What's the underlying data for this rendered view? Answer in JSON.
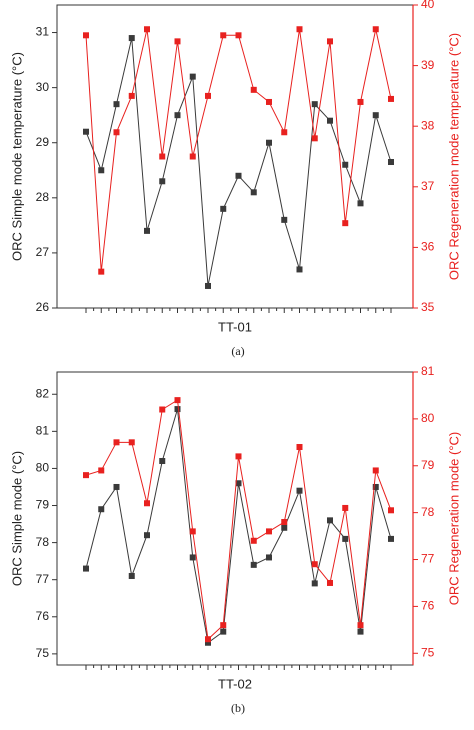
{
  "chart_data": [
    {
      "type": "line",
      "caption": "(a)",
      "xlabel": "TT-01",
      "ylabel": "ORC Simple mode temperature (°C)",
      "y2label": "ORC Regeneration mode temperature (°C)",
      "categories": [
        null,
        null,
        null,
        null,
        null,
        null,
        null,
        null,
        null,
        null,
        null,
        null,
        null,
        null,
        null,
        null,
        null,
        null,
        null,
        null,
        null
      ],
      "ylim": [
        26,
        31.5
      ],
      "yticks": [
        26,
        27,
        28,
        29,
        30,
        31
      ],
      "y2lim": [
        35,
        40
      ],
      "y2ticks": [
        35,
        36,
        37,
        38,
        39,
        40
      ],
      "series": [
        {
          "color": "#3a3a3a",
          "values": [
            29.2,
            28.5,
            29.7,
            30.9,
            27.4,
            28.3,
            29.5,
            30.2,
            26.4,
            27.8,
            28.4,
            28.1,
            29.0,
            27.6,
            26.7,
            29.7,
            29.4,
            28.6,
            27.9,
            29.5,
            28.65
          ]
        },
        {
          "color": "#e8211f",
          "axis": "y2",
          "values": [
            39.5,
            35.6,
            37.9,
            38.5,
            39.6,
            37.5,
            39.4,
            37.5,
            38.5,
            39.5,
            39.5,
            38.6,
            38.4,
            37.9,
            39.6,
            37.8,
            39.4,
            36.4,
            38.4,
            39.6,
            38.45
          ]
        }
      ]
    },
    {
      "type": "line",
      "caption": "(b)",
      "xlabel": "TT-02",
      "ylabel": "ORC Simple mode (°C)",
      "y2label": "ORC Regeneration mode (°C)",
      "categories": [
        null,
        null,
        null,
        null,
        null,
        null,
        null,
        null,
        null,
        null,
        null,
        null,
        null,
        null,
        null,
        null,
        null,
        null,
        null,
        null,
        null
      ],
      "ylim": [
        74.7,
        82.6
      ],
      "yticks": [
        75,
        76,
        77,
        78,
        79,
        80,
        81,
        82
      ],
      "y2lim": [
        74.75,
        81
      ],
      "y2ticks": [
        75,
        76,
        77,
        78,
        79,
        80,
        81
      ],
      "series": [
        {
          "color": "#3a3a3a",
          "values": [
            77.3,
            78.9,
            79.5,
            77.1,
            78.2,
            80.2,
            81.6,
            77.6,
            75.3,
            75.6,
            79.6,
            77.4,
            77.6,
            78.4,
            79.4,
            76.9,
            78.6,
            78.1,
            75.6,
            79.5,
            78.1
          ]
        },
        {
          "color": "#e8211f",
          "axis": "y2",
          "values": [
            78.8,
            78.9,
            79.5,
            79.5,
            78.2,
            80.2,
            80.4,
            77.6,
            75.3,
            75.6,
            79.2,
            77.4,
            77.6,
            77.8,
            79.4,
            76.9,
            76.5,
            78.1,
            75.6,
            78.9,
            78.05
          ]
        }
      ]
    }
  ]
}
